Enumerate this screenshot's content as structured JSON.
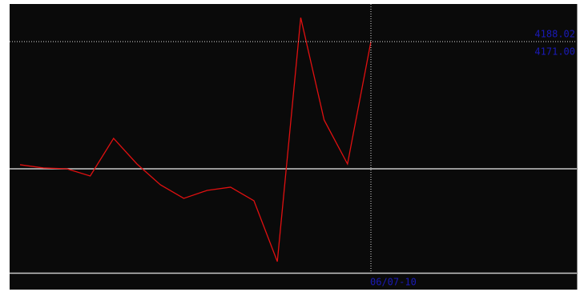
{
  "chart_data": {
    "type": "line",
    "categories": [
      null,
      null,
      null,
      null,
      null,
      null,
      null,
      null,
      null,
      null,
      null,
      null,
      null,
      null,
      null,
      "06/07-10"
    ],
    "series": [
      {
        "color": "#e01010",
        "values": [
          4171.54,
          4171.11,
          4171.0,
          4170.04,
          4175.07,
          4171.64,
          4168.86,
          4167.04,
          4168.11,
          4168.54,
          4166.72,
          4158.58,
          4191.23,
          4177.53,
          4171.64,
          4188.02
        ]
      }
    ],
    "ylim": [
      4157.08,
      4193.05
    ],
    "crosshair_value": 4188.02,
    "reference_value": {
      "value": 4171,
      "label": "4171.00"
    }
  }
}
